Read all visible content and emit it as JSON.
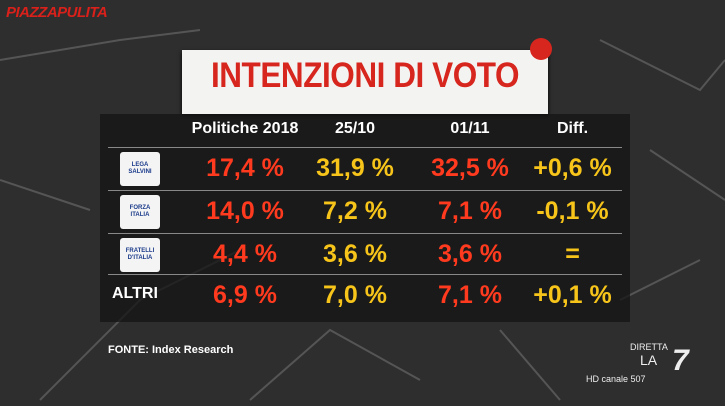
{
  "show": "PIAZZAPULITA",
  "title": "INTENZIONI DI VOTO",
  "table": {
    "columns": [
      "Politiche 2018",
      "25/10",
      "01/11",
      "Diff."
    ],
    "rows": [
      {
        "label": "LEGA SALVINI",
        "cells": [
          "17,4 %",
          "31,9 %",
          "32,5 %",
          "+0,6 %"
        ]
      },
      {
        "label": "FORZA ITALIA",
        "cells": [
          "14,0 %",
          "7,2 %",
          "7,1 %",
          "-0,1 %"
        ]
      },
      {
        "label": "FRATELLI D'ITALIA",
        "cells": [
          "4,4 %",
          "3,6 %",
          "3,6 %",
          "="
        ]
      },
      {
        "label": "ALTRI",
        "cells": [
          "6,9 %",
          "7,0 %",
          "7,1 %",
          "+0,1 %"
        ]
      }
    ]
  },
  "source": "FONTE: Index Research",
  "channel": {
    "live": "DIRETTA",
    "name": "LA",
    "number": "7",
    "hd": "HD canale 507"
  }
}
